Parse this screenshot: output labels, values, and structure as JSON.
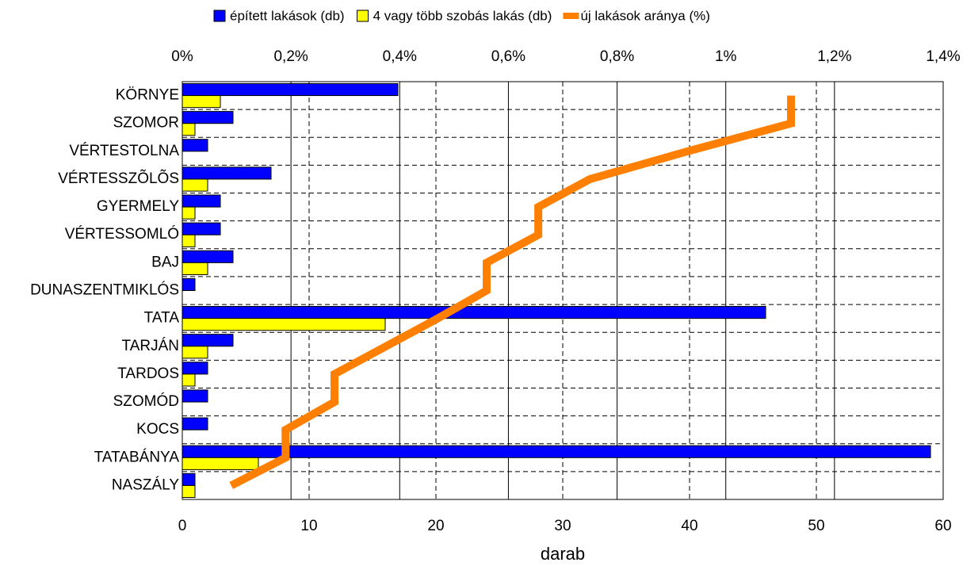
{
  "chart_data": {
    "type": "bar",
    "x_label": "darab",
    "categories": [
      "KÖRNYE",
      "SZOMOR",
      "VÉRTESTOLNA",
      "VÉRTESSZÕLÕS",
      "GYERMELY",
      "VÉRTESSOMLÓ",
      "BAJ",
      "DUNASZENTMIKLÓS",
      "TATA",
      "TARJÁN",
      "TARDOS",
      "SZOMÓD",
      "KOCS",
      "TATABÁNYA",
      "NASZÁLY"
    ],
    "series": [
      {
        "name": "épített lakások (db)",
        "type": "bar",
        "color": "#0000ff",
        "values": [
          17,
          4,
          2,
          7,
          3,
          3,
          4,
          1,
          46,
          4,
          2,
          2,
          2,
          59,
          1
        ]
      },
      {
        "name": "4 vagy több szobás lakás (db)",
        "type": "bar",
        "color": "#ffff00",
        "values": [
          3,
          1,
          0,
          2,
          1,
          1,
          2,
          0,
          16,
          2,
          1,
          0,
          0,
          6,
          1
        ]
      },
      {
        "name": "új lakások aránya (%)",
        "type": "line",
        "axis": "x2",
        "color": "#ff8000",
        "values": [
          1.12,
          1.12,
          0.93,
          0.75,
          0.655,
          0.655,
          0.56,
          0.56,
          0.47,
          0.375,
          0.28,
          0.28,
          0.19,
          0.19,
          0.09
        ]
      }
    ],
    "xlim": [
      0,
      60
    ],
    "xticks": [
      0,
      10,
      20,
      30,
      40,
      50,
      60
    ],
    "x2lim": [
      0,
      1.4
    ],
    "x2ticks": [
      {
        "value": 0,
        "label": "0%"
      },
      {
        "value": 0.2,
        "label": "0,2%"
      },
      {
        "value": 0.4,
        "label": "0,4%"
      },
      {
        "value": 0.6,
        "label": "0,6%"
      },
      {
        "value": 0.8,
        "label": "0,8%"
      },
      {
        "value": 1,
        "label": "1%"
      },
      {
        "value": 1.2,
        "label": "1,2%"
      },
      {
        "value": 1.4,
        "label": "1,4%"
      }
    ],
    "grid": true,
    "legend": "top"
  }
}
